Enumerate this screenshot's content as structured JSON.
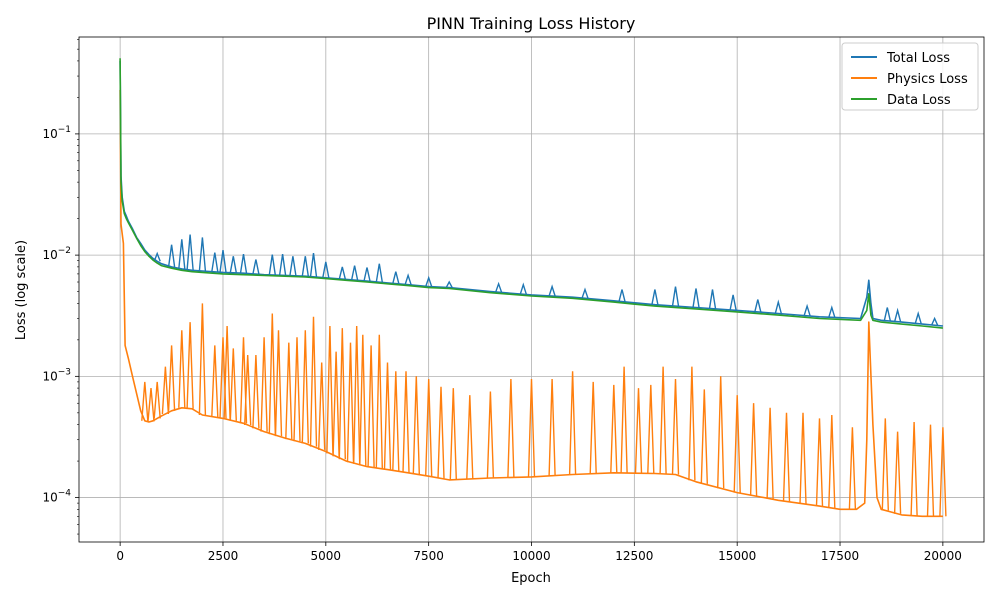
{
  "chart_data": {
    "type": "line",
    "title": "PINN Training Loss History",
    "xlabel": "Epoch",
    "ylabel": "Loss (log scale)",
    "yscale": "log",
    "xlim": [
      -1000,
      21000
    ],
    "ylim": [
      4.3e-05,
      0.63
    ],
    "grid": true,
    "legend": "top-right",
    "x_ticks": [
      0,
      2500,
      5000,
      7500,
      10000,
      12500,
      15000,
      17500,
      20000
    ],
    "x_tick_labels": [
      "0",
      "2500",
      "5000",
      "7500",
      "10000",
      "12500",
      "15000",
      "17500",
      "20000"
    ],
    "y_ticks": [
      0.0001,
      0.001,
      0.01,
      0.1
    ],
    "y_tick_labels": [
      "10^-4",
      "10^-3",
      "10^-2",
      "10^-1"
    ],
    "series": [
      {
        "name": "Total Loss",
        "color": "#1f77b4",
        "x": [
          0,
          20,
          50,
          100,
          150,
          200,
          300,
          400,
          500,
          600,
          700,
          800,
          900,
          1000,
          1250,
          1500,
          1750,
          2000,
          2500,
          3000,
          3500,
          4000,
          4500,
          5000,
          5500,
          6000,
          6500,
          7000,
          7500,
          8000,
          9000,
          10000,
          11000,
          12000,
          13000,
          14000,
          15000,
          16000,
          17000,
          18000,
          18150,
          18200,
          18250,
          18300,
          18500,
          19000,
          19500,
          20000
        ],
        "y": [
          0.4,
          0.045,
          0.03,
          0.023,
          0.021,
          0.019,
          0.0165,
          0.014,
          0.0125,
          0.011,
          0.0101,
          0.0094,
          0.0089,
          0.0085,
          0.008,
          0.0077,
          0.0075,
          0.0074,
          0.0072,
          0.0071,
          0.0069,
          0.0068,
          0.0067,
          0.0065,
          0.0063,
          0.0061,
          0.0059,
          0.0057,
          0.0055,
          0.0054,
          0.005,
          0.0047,
          0.0045,
          0.0042,
          0.0039,
          0.0037,
          0.0035,
          0.0033,
          0.0031,
          0.003,
          0.0045,
          0.0062,
          0.004,
          0.003,
          0.0029,
          0.0028,
          0.0027,
          0.0026
        ],
        "spikes": [
          [
            900,
            0.0103
          ],
          [
            1250,
            0.0122
          ],
          [
            1500,
            0.0135
          ],
          [
            1700,
            0.0148
          ],
          [
            2000,
            0.014
          ],
          [
            2300,
            0.0105
          ],
          [
            2500,
            0.011
          ],
          [
            2750,
            0.0098
          ],
          [
            3000,
            0.0102
          ],
          [
            3300,
            0.0092
          ],
          [
            3700,
            0.0101
          ],
          [
            3950,
            0.0102
          ],
          [
            4200,
            0.0098
          ],
          [
            4500,
            0.0098
          ],
          [
            4700,
            0.0104
          ],
          [
            5000,
            0.0088
          ],
          [
            5400,
            0.008
          ],
          [
            5700,
            0.0082
          ],
          [
            6000,
            0.0079
          ],
          [
            6300,
            0.0085
          ],
          [
            6700,
            0.0073
          ],
          [
            7000,
            0.0068
          ],
          [
            7500,
            0.0065
          ],
          [
            8000,
            0.006
          ],
          [
            9200,
            0.0058
          ],
          [
            9800,
            0.0057
          ],
          [
            10500,
            0.0055
          ],
          [
            11300,
            0.0052
          ],
          [
            12200,
            0.0052
          ],
          [
            13000,
            0.0052
          ],
          [
            13500,
            0.0055
          ],
          [
            14000,
            0.0053
          ],
          [
            14400,
            0.0052
          ],
          [
            14900,
            0.0047
          ],
          [
            15500,
            0.0043
          ],
          [
            16000,
            0.0041
          ],
          [
            16700,
            0.0038
          ],
          [
            17300,
            0.0037
          ],
          [
            18650,
            0.0037
          ],
          [
            18900,
            0.0035
          ],
          [
            19400,
            0.0033
          ],
          [
            19800,
            0.003
          ]
        ]
      },
      {
        "name": "Physics Loss",
        "color": "#ff7f0e",
        "x": [
          0,
          20,
          50,
          80,
          120,
          200,
          300,
          400,
          500,
          600,
          700,
          800,
          1000,
          1250,
          1500,
          1750,
          2000,
          2500,
          3000,
          3500,
          4000,
          4500,
          5000,
          5500,
          6000,
          6500,
          7000,
          7500,
          8000,
          9000,
          10000,
          11000,
          12000,
          13000,
          13500,
          14000,
          15000,
          16000,
          17000,
          17500,
          17900,
          18100,
          18150,
          18200,
          18300,
          18400,
          18500,
          19000,
          19500,
          20000
        ],
        "y": [
          0.23,
          0.018,
          0.015,
          0.0125,
          0.0018,
          0.0014,
          0.001,
          0.00072,
          0.00052,
          0.00043,
          0.00042,
          0.00043,
          0.00047,
          0.00052,
          0.00055,
          0.00054,
          0.00048,
          0.00045,
          0.00041,
          0.00035,
          0.00031,
          0.00028,
          0.00024,
          0.0002,
          0.00018,
          0.00017,
          0.00016,
          0.00015,
          0.00014,
          0.000145,
          0.000148,
          0.000155,
          0.00016,
          0.000158,
          0.000155,
          0.000135,
          0.00011,
          9.5e-05,
          8.5e-05,
          8e-05,
          8e-05,
          9e-05,
          0.0003,
          0.0028,
          0.0004,
          0.0001,
          8e-05,
          7.2e-05,
          7e-05,
          7e-05
        ],
        "spikes": [
          [
            600,
            0.0009
          ],
          [
            750,
            0.0008
          ],
          [
            900,
            0.0009
          ],
          [
            1100,
            0.0012
          ],
          [
            1250,
            0.0018
          ],
          [
            1500,
            0.0024
          ],
          [
            1700,
            0.0028
          ],
          [
            2000,
            0.004
          ],
          [
            2300,
            0.0018
          ],
          [
            2500,
            0.0021
          ],
          [
            2600,
            0.0026
          ],
          [
            2750,
            0.0017
          ],
          [
            3000,
            0.0021
          ],
          [
            3100,
            0.0015
          ],
          [
            3300,
            0.0015
          ],
          [
            3500,
            0.0021
          ],
          [
            3700,
            0.0033
          ],
          [
            3850,
            0.0024
          ],
          [
            4100,
            0.0019
          ],
          [
            4300,
            0.0021
          ],
          [
            4500,
            0.0024
          ],
          [
            4700,
            0.0031
          ],
          [
            4900,
            0.0013
          ],
          [
            5100,
            0.0026
          ],
          [
            5250,
            0.0016
          ],
          [
            5400,
            0.0025
          ],
          [
            5600,
            0.0019
          ],
          [
            5750,
            0.0026
          ],
          [
            5900,
            0.0022
          ],
          [
            6100,
            0.0018
          ],
          [
            6300,
            0.0022
          ],
          [
            6500,
            0.0013
          ],
          [
            6700,
            0.0011
          ],
          [
            6950,
            0.0011
          ],
          [
            7200,
            0.001
          ],
          [
            7500,
            0.00095
          ],
          [
            7800,
            0.00082
          ],
          [
            8100,
            0.0008
          ],
          [
            8500,
            0.0007
          ],
          [
            9000,
            0.00075
          ],
          [
            9500,
            0.00095
          ],
          [
            10000,
            0.00095
          ],
          [
            10500,
            0.00095
          ],
          [
            11000,
            0.0011
          ],
          [
            11500,
            0.0009
          ],
          [
            12000,
            0.00085
          ],
          [
            12250,
            0.0012
          ],
          [
            12600,
            0.0008
          ],
          [
            12900,
            0.00085
          ],
          [
            13200,
            0.0012
          ],
          [
            13500,
            0.00095
          ],
          [
            13900,
            0.0012
          ],
          [
            14200,
            0.00078
          ],
          [
            14600,
            0.001
          ],
          [
            15000,
            0.0007
          ],
          [
            15400,
            0.0006
          ],
          [
            15800,
            0.00055
          ],
          [
            16200,
            0.0005
          ],
          [
            16600,
            0.0005
          ],
          [
            17000,
            0.00045
          ],
          [
            17300,
            0.00048
          ],
          [
            17800,
            0.00038
          ],
          [
            18600,
            0.00045
          ],
          [
            18900,
            0.00035
          ],
          [
            19300,
            0.00042
          ],
          [
            19700,
            0.0004
          ],
          [
            20000,
            0.00038
          ]
        ]
      },
      {
        "name": "Data Loss",
        "color": "#2ca02c",
        "x": [
          0,
          20,
          50,
          100,
          150,
          200,
          300,
          400,
          500,
          600,
          700,
          800,
          900,
          1000,
          1250,
          1500,
          1750,
          2000,
          2500,
          3000,
          3500,
          4000,
          4500,
          5000,
          5500,
          6000,
          6500,
          7000,
          7500,
          8000,
          9000,
          10000,
          11000,
          12000,
          13000,
          14000,
          15000,
          16000,
          17000,
          18000,
          18150,
          18200,
          18250,
          18300,
          18500,
          19000,
          19500,
          20000
        ],
        "y": [
          0.42,
          0.04,
          0.028,
          0.022,
          0.02,
          0.0185,
          0.016,
          0.0138,
          0.012,
          0.0107,
          0.0098,
          0.0091,
          0.0086,
          0.0082,
          0.0078,
          0.0075,
          0.0073,
          0.0072,
          0.007,
          0.0069,
          0.0068,
          0.0067,
          0.0066,
          0.0064,
          0.0062,
          0.006,
          0.0058,
          0.0056,
          0.0054,
          0.0053,
          0.0049,
          0.0046,
          0.0044,
          0.0041,
          0.0038,
          0.0036,
          0.0034,
          0.0032,
          0.003,
          0.0029,
          0.0035,
          0.0048,
          0.0032,
          0.0029,
          0.0028,
          0.0027,
          0.0026,
          0.0025
        ]
      }
    ]
  }
}
